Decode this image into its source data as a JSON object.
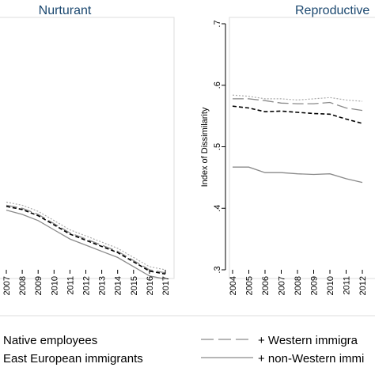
{
  "chart_data": [
    {
      "type": "line",
      "title": "Nurturant",
      "x": [
        "2007",
        "2008",
        "2009",
        "2010",
        "2011",
        "2012",
        "2013",
        "2014",
        "2015",
        "2016",
        "2017"
      ],
      "series": [
        {
          "key": "native",
          "values": [
            0.41,
            0.405,
            0.395,
            0.38,
            0.365,
            0.355,
            0.345,
            0.335,
            0.32,
            0.305,
            0.3
          ]
        },
        {
          "key": "western",
          "values": [
            0.405,
            0.4,
            0.39,
            0.375,
            0.36,
            0.35,
            0.34,
            0.33,
            0.315,
            0.3,
            0.295
          ]
        },
        {
          "key": "eastern",
          "values": [
            0.403,
            0.398,
            0.388,
            0.373,
            0.358,
            0.348,
            0.338,
            0.328,
            0.313,
            0.298,
            0.293
          ]
        },
        {
          "key": "nonwestern",
          "values": [
            0.397,
            0.39,
            0.38,
            0.365,
            0.35,
            0.34,
            0.33,
            0.32,
            0.305,
            0.29,
            0.285
          ]
        }
      ]
    },
    {
      "type": "line",
      "title": "Reproductive",
      "ylabel": "Index of Dissimilarity",
      "yticks": [
        ".3",
        ".4",
        ".5",
        ".6",
        ".7"
      ],
      "ylim": [
        0.3,
        0.7
      ],
      "x": [
        "2004",
        "2005",
        "2006",
        "2007",
        "2008",
        "2009",
        "2010",
        "2011",
        "2012"
      ],
      "series": [
        {
          "key": "native",
          "values": [
            0.584,
            0.582,
            0.578,
            0.578,
            0.576,
            0.578,
            0.58,
            0.576,
            0.574
          ]
        },
        {
          "key": "western",
          "values": [
            0.578,
            0.578,
            0.575,
            0.571,
            0.57,
            0.57,
            0.572,
            0.563,
            0.559
          ]
        },
        {
          "key": "eastern",
          "values": [
            0.566,
            0.563,
            0.557,
            0.558,
            0.556,
            0.554,
            0.553,
            0.545,
            0.538
          ]
        },
        {
          "key": "nonwestern",
          "values": [
            0.467,
            0.467,
            0.458,
            0.458,
            0.456,
            0.455,
            0.456,
            0.448,
            0.442
          ]
        }
      ]
    }
  ],
  "legend": {
    "items": [
      {
        "key": "native",
        "label": "Native employees"
      },
      {
        "key": "western",
        "label": "+ Western immigra"
      },
      {
        "key": "eastern",
        "label": "East European immigrants"
      },
      {
        "key": "nonwestern",
        "label": "+ non-Western immi"
      }
    ]
  },
  "colors": {
    "title": "#1a476f",
    "native": "#aaaaaa",
    "western": "#8a8a8a",
    "eastern": "#000000",
    "nonwestern": "#8a8a8a"
  }
}
